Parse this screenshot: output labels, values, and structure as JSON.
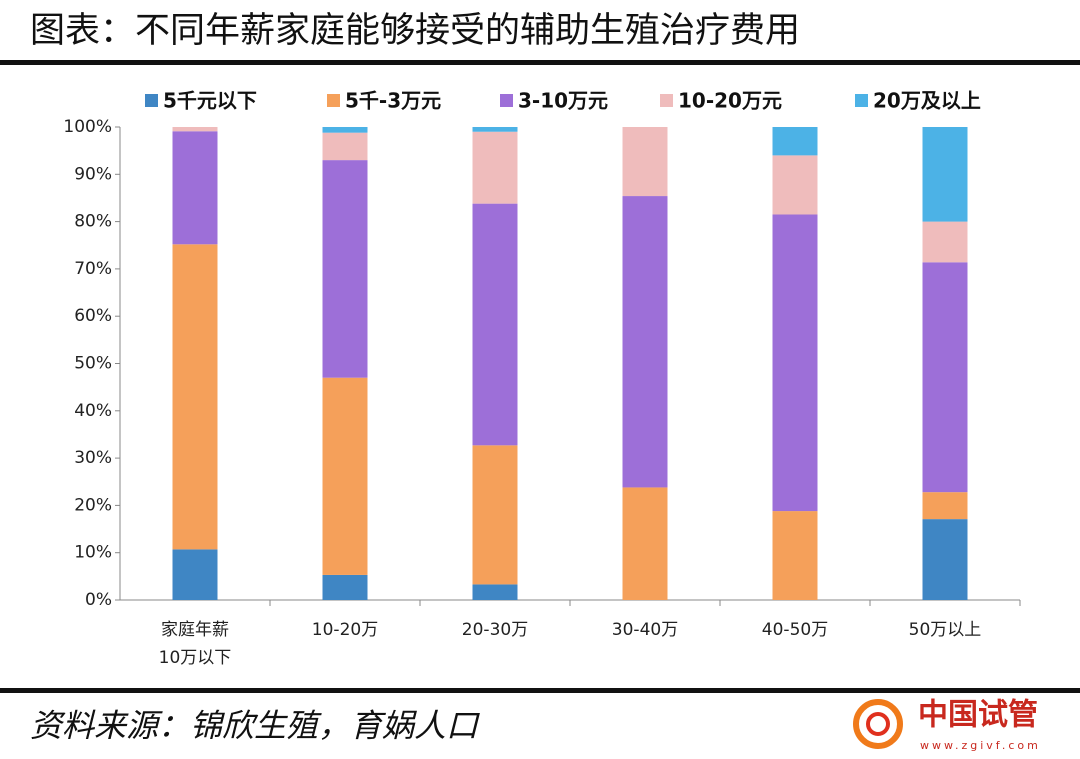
{
  "header": {
    "title": "图表：不同年薪家庭能够接受的辅助生殖治疗费用"
  },
  "chart_data": {
    "type": "bar",
    "stacked": true,
    "categories": [
      "家庭年薪\n10万以下",
      "10-20万",
      "20-30万",
      "30-40万",
      "40-50万",
      "50万以上"
    ],
    "series": [
      {
        "name": "5千元以下",
        "color": "#3f86c4",
        "values": [
          10.7,
          5.3,
          3.3,
          0,
          0,
          17.1
        ]
      },
      {
        "name": "5千-3万元",
        "color": "#f5a05a",
        "values": [
          64.5,
          41.7,
          29.4,
          23.8,
          18.8,
          5.7
        ]
      },
      {
        "name": "3-10万元",
        "color": "#9d6fd8",
        "values": [
          23.9,
          46.0,
          51.1,
          61.6,
          62.7,
          48.6
        ]
      },
      {
        "name": "10-20万元",
        "color": "#efbcbc",
        "values": [
          0.9,
          5.8,
          15.2,
          14.6,
          12.5,
          8.6
        ]
      },
      {
        "name": "20万及以上",
        "color": "#4cb2e6",
        "values": [
          0,
          1.2,
          1.0,
          0,
          6.0,
          20.0
        ]
      }
    ],
    "ylim": [
      0,
      100
    ],
    "yticks": [
      {
        "value": 0,
        "label": "0%"
      },
      {
        "value": 10,
        "label": "10%"
      },
      {
        "value": 20,
        "label": "20%"
      },
      {
        "value": 30,
        "label": "30%"
      },
      {
        "value": 40,
        "label": "40%"
      },
      {
        "value": 50,
        "label": "50%"
      },
      {
        "value": 60,
        "label": "60%"
      },
      {
        "value": 70,
        "label": "70%"
      },
      {
        "value": 80,
        "label": "80%"
      },
      {
        "value": 90,
        "label": "90%"
      },
      {
        "value": 100,
        "label": "100%"
      }
    ],
    "legend_position": "top"
  },
  "footer": {
    "source": "资料来源：锦欣生殖，育娲人口",
    "logo": {
      "name": "中国试管",
      "url": "www.zgivf.com"
    }
  }
}
